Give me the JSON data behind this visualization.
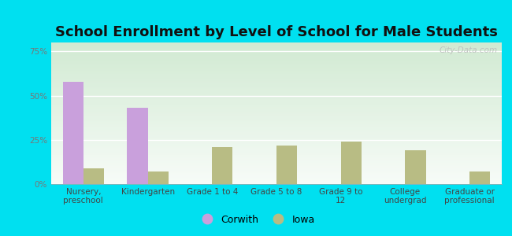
{
  "title": "School Enrollment by Level of School for Male Students",
  "categories": [
    "Nursery,\npreschool",
    "Kindergarten",
    "Grade 1 to 4",
    "Grade 5 to 8",
    "Grade 9 to\n12",
    "College\nundergrad",
    "Graduate or\nprofessional"
  ],
  "corwith_values": [
    58,
    43,
    0,
    0,
    0,
    0,
    0
  ],
  "iowa_values": [
    9,
    7,
    21,
    22,
    24,
    19,
    7
  ],
  "corwith_color": "#c9a0dc",
  "iowa_color": "#b8bc84",
  "background_outer": "#00e0f0",
  "background_plot": "#e8f5e9",
  "title_fontsize": 13,
  "tick_fontsize": 7.5,
  "legend_labels": [
    "Corwith",
    "Iowa"
  ],
  "yticks": [
    0,
    25,
    50,
    75
  ],
  "ylim": [
    0,
    80
  ],
  "bar_width": 0.32,
  "watermark": "City-Data.com"
}
